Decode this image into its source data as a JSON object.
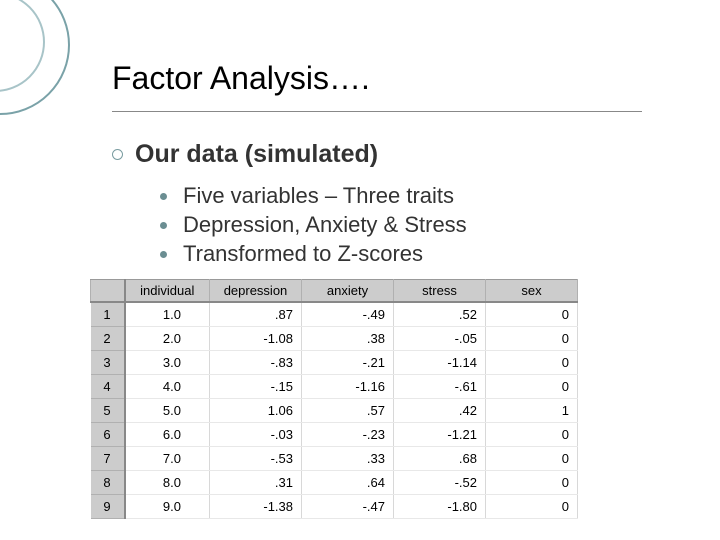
{
  "title": "Factor Analysis….",
  "subtitle": "Our data (simulated)",
  "bullets": [
    "Five variables – Three traits",
    "Depression, Anxiety & Stress",
    "Transformed to Z-scores"
  ],
  "table": {
    "columns": [
      "individual",
      "depression",
      "anxiety",
      "stress",
      "sex"
    ],
    "row_indices": [
      "1",
      "2",
      "3",
      "4",
      "5",
      "6",
      "7",
      "8",
      "9"
    ],
    "rows": [
      [
        "1.0",
        ".87",
        "-.49",
        ".52",
        "0"
      ],
      [
        "2.0",
        "-1.08",
        ".38",
        "-.05",
        "0"
      ],
      [
        "3.0",
        "-.83",
        "-.21",
        "-1.14",
        "0"
      ],
      [
        "4.0",
        "-.15",
        "-1.16",
        "-.61",
        "0"
      ],
      [
        "5.0",
        "1.06",
        ".57",
        ".42",
        "1"
      ],
      [
        "6.0",
        "-.03",
        "-.23",
        "-1.21",
        "0"
      ],
      [
        "7.0",
        "-.53",
        ".33",
        ".68",
        "0"
      ],
      [
        "8.0",
        ".31",
        ".64",
        "-.52",
        "0"
      ],
      [
        "9.0",
        "-1.38",
        "-.47",
        "-1.80",
        "0"
      ]
    ],
    "header_bg": "#cccccc",
    "border_color": "#b0b0b0",
    "font_size": 13
  },
  "colors": {
    "circle_outer": "#7aa2a8",
    "circle_inner": "#a8c4c8",
    "bullet_open": "#7a9ca0",
    "bullet_solid": "#6b8e92",
    "hr": "#888888",
    "background": "#ffffff"
  }
}
